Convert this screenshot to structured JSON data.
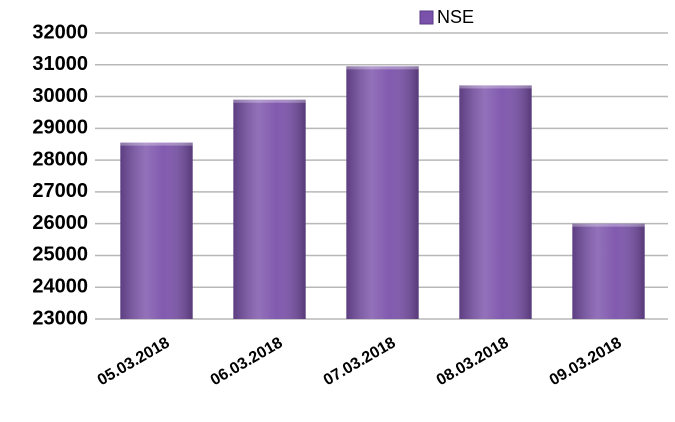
{
  "chart_data": {
    "type": "bar",
    "categories": [
      "05.03.2018",
      "06.03.2018",
      "07.03.2018",
      "08.03.2018",
      "09.03.2018"
    ],
    "series": [
      {
        "name": "NSE",
        "color": "#7b52ab",
        "values": [
          28550,
          29900,
          30950,
          30350,
          26000
        ]
      }
    ],
    "ylim": [
      23000,
      32000
    ],
    "yticks": [
      23000,
      24000,
      25000,
      26000,
      27000,
      28000,
      29000,
      30000,
      31000,
      32000
    ],
    "grid": true,
    "legend": "top"
  }
}
